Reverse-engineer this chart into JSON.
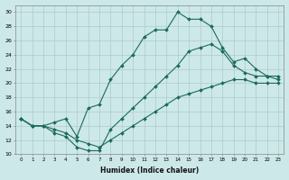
{
  "xlabel": "Humidex (Indice chaleur)",
  "ylabel": "",
  "background_color": "#cde8e8",
  "grid_color": "#aacccc",
  "line_color": "#1a6b5a",
  "xlim": [
    -0.5,
    23.5
  ],
  "ylim": [
    10,
    31
  ],
  "xticks": [
    0,
    1,
    2,
    3,
    4,
    5,
    6,
    7,
    8,
    9,
    10,
    11,
    12,
    13,
    14,
    15,
    16,
    17,
    18,
    19,
    20,
    21,
    22,
    23
  ],
  "yticks": [
    10,
    12,
    14,
    16,
    18,
    20,
    22,
    24,
    26,
    28,
    30
  ],
  "line1_x": [
    0,
    1,
    2,
    3,
    4,
    5,
    6,
    7,
    8,
    9,
    10,
    11,
    12,
    13,
    14,
    15,
    16,
    17,
    18,
    19,
    20,
    21,
    22,
    23
  ],
  "line1_y": [
    15.0,
    14.0,
    14.0,
    14.5,
    15.0,
    12.5,
    16.5,
    17.0,
    20.5,
    22.5,
    24.0,
    26.5,
    27.5,
    27.5,
    30.0,
    29.0,
    29.0,
    28.0,
    25.0,
    23.0,
    23.5,
    22.0,
    21.0,
    20.5
  ],
  "line2_x": [
    0,
    1,
    2,
    3,
    4,
    5,
    6,
    7,
    8,
    9,
    10,
    11,
    12,
    13,
    14,
    15,
    16,
    17,
    18,
    19,
    20,
    21,
    22,
    23
  ],
  "line2_y": [
    15.0,
    14.0,
    14.0,
    13.0,
    12.5,
    11.0,
    10.5,
    10.5,
    13.5,
    15.0,
    16.5,
    18.0,
    19.5,
    21.0,
    22.5,
    24.5,
    25.0,
    25.5,
    24.5,
    22.5,
    21.5,
    21.0,
    21.0,
    21.0
  ],
  "line3_x": [
    0,
    1,
    2,
    3,
    4,
    5,
    6,
    7,
    8,
    9,
    10,
    11,
    12,
    13,
    14,
    15,
    16,
    17,
    18,
    19,
    20,
    21,
    22,
    23
  ],
  "line3_y": [
    15.0,
    14.0,
    14.0,
    13.5,
    13.0,
    12.0,
    11.5,
    11.0,
    12.0,
    13.0,
    14.0,
    15.0,
    16.0,
    17.0,
    18.0,
    18.5,
    19.0,
    19.5,
    20.0,
    20.5,
    20.5,
    20.0,
    20.0,
    20.0
  ]
}
